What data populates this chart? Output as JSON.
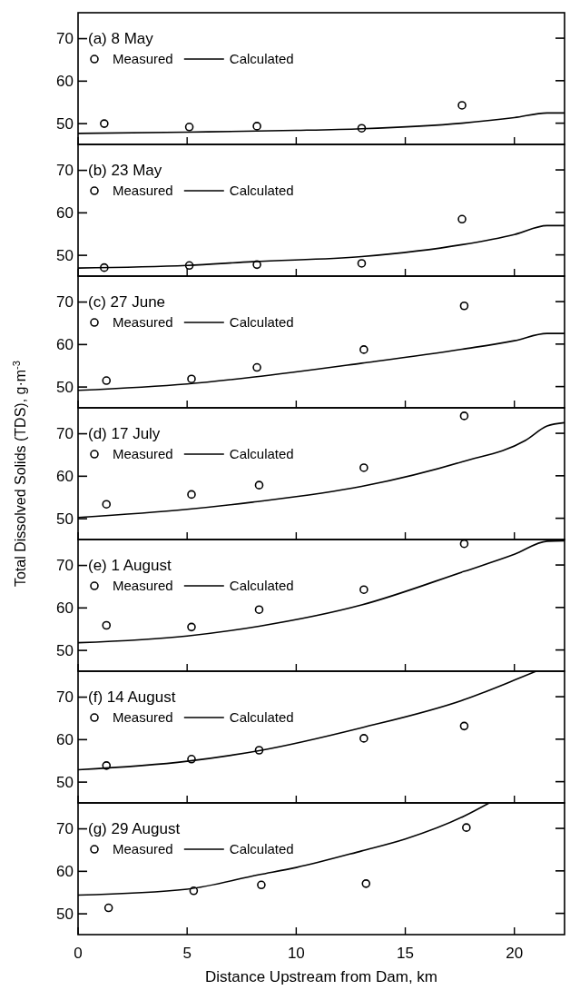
{
  "chart_data": [
    {
      "type": "scatter",
      "title": "(a) 8 May",
      "xlim": [
        0,
        22.3
      ],
      "ylim": [
        45,
        76
      ],
      "xticks": [
        0,
        5,
        10,
        15,
        20
      ],
      "yticks": [
        50,
        60,
        70
      ],
      "tick_labels": "y",
      "legend": "top left",
      "series": [
        {
          "name": "Measured",
          "type": "scatter",
          "marker": "circle",
          "color": "#000000",
          "x": [
            1.2,
            5.1,
            8.2,
            13.0,
            17.6
          ],
          "values": [
            49.9,
            49.1,
            49.3,
            48.8,
            54.2
          ]
        },
        {
          "name": "Calculated",
          "type": "line",
          "marker": "none",
          "color": "#000000",
          "x": [
            0,
            5,
            10,
            13,
            17.6,
            20,
            21.5,
            22.3
          ],
          "values": [
            47.6,
            47.9,
            48.3,
            48.7,
            50.0,
            51.3,
            52.4,
            52.4
          ]
        }
      ]
    },
    {
      "type": "scatter",
      "title": "(b) 23 May",
      "xlim": [
        0,
        22.3
      ],
      "ylim": [
        45,
        76
      ],
      "xticks": [
        0,
        5,
        10,
        15,
        20
      ],
      "yticks": [
        50,
        60,
        70
      ],
      "tick_labels": "y",
      "legend": "top left",
      "series": [
        {
          "name": "Measured",
          "type": "scatter",
          "marker": "circle",
          "color": "#000000",
          "x": [
            1.2,
            5.1,
            8.2,
            13.0,
            17.6
          ],
          "values": [
            47.0,
            47.5,
            47.7,
            48.0,
            58.4
          ]
        },
        {
          "name": "Calculated",
          "type": "line",
          "marker": "none",
          "color": "#000000",
          "x": [
            0,
            5,
            8,
            13,
            17.6,
            20,
            21.5,
            22.3
          ],
          "values": [
            46.9,
            47.5,
            48.4,
            49.6,
            52.4,
            54.8,
            56.9,
            56.9
          ]
        }
      ]
    },
    {
      "type": "scatter",
      "title": "(c) 27 June",
      "xlim": [
        0,
        22.3
      ],
      "ylim": [
        45,
        76
      ],
      "xticks": [
        0,
        5,
        10,
        15,
        20
      ],
      "yticks": [
        50,
        60,
        70
      ],
      "tick_labels": "y",
      "legend": "top left",
      "series": [
        {
          "name": "Measured",
          "type": "scatter",
          "marker": "circle",
          "color": "#000000",
          "x": [
            1.3,
            5.2,
            8.2,
            13.1,
            17.7
          ],
          "values": [
            51.4,
            51.8,
            54.5,
            58.7,
            69.0
          ]
        },
        {
          "name": "Calculated",
          "type": "line",
          "marker": "none",
          "color": "#000000",
          "x": [
            0,
            5,
            8,
            13,
            17.6,
            20,
            21.5,
            22.3
          ],
          "values": [
            49.1,
            50.6,
            52.2,
            55.5,
            58.8,
            60.8,
            62.5,
            62.5
          ]
        }
      ]
    },
    {
      "type": "scatter",
      "title": "(d) 17 July",
      "ylabel": "Total Dissolved Solids (TDS), g·m$^{-3}$",
      "xlim": [
        0,
        22.3
      ],
      "ylim": [
        45,
        76
      ],
      "xticks": [
        0,
        5,
        10,
        15,
        20
      ],
      "yticks": [
        50,
        60,
        70
      ],
      "tick_labels": "y",
      "legend": "top left",
      "series": [
        {
          "name": "Measured",
          "type": "scatter",
          "marker": "circle",
          "color": "#000000",
          "x": [
            1.3,
            5.2,
            8.3,
            13.1,
            17.7
          ],
          "values": [
            53.3,
            55.6,
            57.8,
            61.9,
            74.1
          ]
        },
        {
          "name": "Calculated",
          "type": "line",
          "marker": "none",
          "color": "#000000",
          "x": [
            0,
            5,
            8,
            13,
            17.6,
            20.5,
            21.5,
            22.3
          ],
          "values": [
            50.2,
            52.1,
            53.8,
            57.5,
            63.3,
            68.3,
            71.7,
            72.5
          ]
        }
      ]
    },
    {
      "type": "scatter",
      "title": "(e) 1 August",
      "xlim": [
        0,
        22.3
      ],
      "ylim": [
        45,
        76
      ],
      "xticks": [
        0,
        5,
        10,
        15,
        20
      ],
      "yticks": [
        50,
        60,
        70
      ],
      "tick_labels": "y",
      "legend": "top left",
      "series": [
        {
          "name": "Measured",
          "type": "scatter",
          "marker": "circle",
          "color": "#000000",
          "x": [
            1.3,
            5.2,
            8.3,
            13.1,
            17.7
          ],
          "values": [
            55.8,
            55.4,
            59.5,
            64.2,
            75.0
          ]
        },
        {
          "name": "Calculated",
          "type": "line",
          "marker": "none",
          "color": "#000000",
          "x": [
            0,
            5,
            8.3,
            13,
            17.7,
            20,
            21.5,
            22.3
          ],
          "values": [
            51.7,
            53.3,
            55.6,
            60.6,
            68.5,
            72.5,
            75.6,
            75.7
          ]
        }
      ]
    },
    {
      "type": "scatter",
      "title": "(f) 14 August",
      "xlim": [
        0,
        22.3
      ],
      "ylim": [
        45,
        76
      ],
      "xticks": [
        0,
        5,
        10,
        15,
        20
      ],
      "yticks": [
        50,
        60,
        70
      ],
      "tick_labels": "y",
      "legend": "top left",
      "series": [
        {
          "name": "Measured",
          "type": "scatter",
          "marker": "circle",
          "color": "#000000",
          "x": [
            1.3,
            5.2,
            8.3,
            13.1,
            17.7
          ],
          "values": [
            53.8,
            55.3,
            57.4,
            60.2,
            63.1
          ]
        },
        {
          "name": "Calculated",
          "type": "line",
          "marker": "none",
          "color": "#000000",
          "x": [
            0,
            5,
            8.3,
            13,
            17.7,
            20,
            21
          ],
          "values": [
            52.8,
            54.8,
            57.3,
            62.7,
            69.3,
            73.9,
            76.0
          ]
        }
      ]
    },
    {
      "type": "scatter",
      "title": "(g) 29 August",
      "xlabel": "Distance Upstream from Dam, km",
      "xlim": [
        0,
        22.3
      ],
      "ylim": [
        45,
        76
      ],
      "xticks": [
        0,
        5,
        10,
        15,
        20
      ],
      "yticks": [
        50,
        60,
        70
      ],
      "legend": "top left",
      "series": [
        {
          "name": "Measured",
          "type": "scatter",
          "marker": "circle",
          "color": "#000000",
          "x": [
            1.4,
            5.3,
            8.4,
            13.2,
            17.8
          ],
          "values": [
            51.3,
            55.3,
            56.7,
            57.0,
            70.2
          ]
        },
        {
          "name": "Calculated",
          "type": "line",
          "marker": "none",
          "color": "#000000",
          "x": [
            0,
            5,
            8.3,
            10,
            13,
            15,
            17.7,
            18.85
          ],
          "values": [
            54.3,
            55.7,
            59.1,
            60.8,
            64.7,
            67.5,
            72.9,
            76.0
          ]
        }
      ]
    }
  ]
}
